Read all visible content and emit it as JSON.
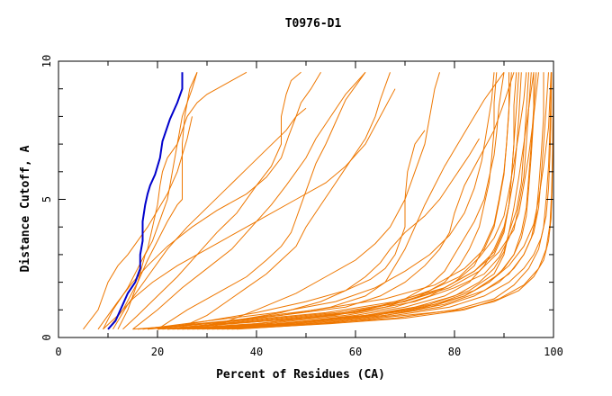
{
  "chart_data": {
    "type": "line",
    "title": "T0976-D1",
    "xlabel": "Percent of Residues (CA)",
    "ylabel": "Distance Cutoff, A",
    "xlim": [
      0,
      100
    ],
    "ylim": [
      0,
      10
    ],
    "x_ticks": [
      0,
      20,
      40,
      60,
      80,
      100
    ],
    "x_tick_labels": [
      "0",
      "20",
      "40",
      "60",
      "80",
      "100"
    ],
    "y_ticks": [
      0,
      5,
      10
    ],
    "y_tick_labels": [
      "0",
      "5",
      "10"
    ],
    "grid": false,
    "colors": {
      "highlight": "#0000cc",
      "others": "#ee7700",
      "axes": "#000000"
    },
    "highlight_series": {
      "x": [
        10,
        11.5,
        12.5,
        14,
        15.5,
        16.5,
        16.5,
        17,
        17,
        17.5,
        18,
        18.5,
        19.5,
        20.5,
        21,
        22.5,
        24,
        25,
        25
      ],
      "y": [
        0.3,
        0.6,
        1.0,
        1.6,
        2.0,
        2.5,
        3.0,
        3.5,
        4.2,
        4.8,
        5.2,
        5.5,
        5.9,
        6.5,
        7.1,
        7.9,
        8.5,
        9.0,
        9.6
      ]
    },
    "series": [
      {
        "x": [
          9,
          11,
          14,
          16,
          18,
          19,
          20,
          20.5,
          21,
          22,
          24,
          25,
          26,
          28,
          30,
          32,
          34,
          36,
          38
        ],
        "y": [
          0.3,
          1.0,
          1.8,
          2.5,
          3.2,
          4.0,
          4.8,
          5.5,
          6.0,
          6.5,
          7.0,
          7.5,
          8.0,
          8.5,
          8.8,
          9.0,
          9.2,
          9.4,
          9.6
        ]
      },
      {
        "x": [
          12,
          14,
          16,
          17.5,
          19,
          20,
          21,
          22,
          22.5,
          23,
          24,
          25,
          26,
          27,
          28
        ],
        "y": [
          0.3,
          1.0,
          2.0,
          3.0,
          3.5,
          4.0,
          4.5,
          5.0,
          5.5,
          6.0,
          7.0,
          8.0,
          8.5,
          9.0,
          9.6
        ]
      },
      {
        "x": [
          10,
          13,
          16,
          18,
          20,
          22,
          24,
          25,
          25,
          25,
          25.5,
          26.5,
          28
        ],
        "y": [
          0.3,
          1.0,
          2.0,
          2.8,
          3.5,
          4.2,
          4.8,
          5.0,
          6.0,
          7.0,
          8.0,
          9.0,
          9.6
        ]
      },
      {
        "x": [
          8,
          10,
          12,
          15,
          18,
          22,
          27,
          32,
          38,
          42,
          45,
          46.5,
          48,
          49,
          51,
          52,
          53
        ],
        "y": [
          0.3,
          0.8,
          1.3,
          2.0,
          2.6,
          3.3,
          4.0,
          4.6,
          5.2,
          5.8,
          6.5,
          7.3,
          8.0,
          8.5,
          9.0,
          9.3,
          9.6
        ]
      },
      {
        "x": [
          13,
          16,
          20,
          24,
          28,
          32,
          36,
          40,
          43,
          45,
          45,
          46,
          47,
          49
        ],
        "y": [
          0.3,
          0.8,
          1.5,
          2.2,
          3.0,
          3.8,
          4.5,
          5.5,
          6.2,
          7.0,
          8.0,
          8.8,
          9.3,
          9.6
        ]
      },
      {
        "x": [
          15,
          20,
          25,
          30,
          35,
          39,
          43,
          46,
          48,
          50,
          52,
          55,
          58,
          62
        ],
        "y": [
          0.3,
          1.0,
          1.8,
          2.5,
          3.2,
          4.0,
          4.8,
          5.5,
          6.0,
          6.5,
          7.2,
          8.0,
          8.8,
          9.6
        ]
      },
      {
        "x": [
          20,
          26,
          32,
          38,
          42,
          45,
          47,
          48,
          49,
          50,
          51,
          52,
          54,
          56,
          58,
          62
        ],
        "y": [
          0.3,
          1.0,
          1.6,
          2.2,
          2.8,
          3.3,
          3.8,
          4.3,
          4.8,
          5.3,
          5.8,
          6.3,
          7.0,
          7.8,
          8.6,
          9.6
        ]
      },
      {
        "x": [
          24,
          30,
          34,
          38,
          42,
          45,
          48,
          50,
          53,
          56,
          59,
          62,
          64,
          65,
          66,
          67
        ],
        "y": [
          0.3,
          0.8,
          1.3,
          1.8,
          2.3,
          2.8,
          3.3,
          4.0,
          4.8,
          5.6,
          6.4,
          7.2,
          8.0,
          8.6,
          9.1,
          9.6
        ]
      },
      {
        "x": [
          30,
          40,
          48,
          54,
          60,
          64,
          67,
          70,
          72,
          74,
          75,
          76,
          77
        ],
        "y": [
          0.3,
          1.0,
          1.6,
          2.2,
          2.8,
          3.4,
          4.0,
          5.0,
          6.0,
          7.0,
          8.0,
          9.0,
          9.6
        ]
      },
      {
        "x": [
          20,
          30,
          40,
          50,
          58,
          63,
          66,
          68,
          69,
          70,
          70,
          70.5,
          72,
          74
        ],
        "y": [
          0.3,
          0.6,
          0.9,
          1.3,
          1.7,
          2.1,
          2.5,
          3.0,
          3.5,
          4.0,
          5.0,
          6.0,
          7.0,
          7.5
        ]
      },
      {
        "x": [
          25,
          35,
          45,
          53,
          58,
          62,
          65,
          67,
          70,
          74,
          77,
          80,
          83,
          85
        ],
        "y": [
          0.3,
          0.6,
          0.9,
          1.3,
          1.7,
          2.2,
          2.7,
          3.2,
          3.8,
          4.4,
          5.0,
          5.8,
          6.6,
          7.2
        ]
      },
      {
        "x": [
          15,
          30,
          45,
          55,
          62,
          66,
          68,
          70,
          72,
          74,
          76,
          78,
          80,
          82,
          84,
          86,
          88,
          90
        ],
        "y": [
          0.3,
          0.5,
          0.8,
          1.1,
          1.5,
          2.0,
          2.6,
          3.2,
          4.0,
          4.8,
          5.5,
          6.2,
          6.8,
          7.4,
          8.0,
          8.6,
          9.1,
          9.6
        ]
      },
      {
        "x": [
          18,
          30,
          45,
          58,
          65,
          70,
          74,
          77,
          79,
          80,
          82,
          85,
          88,
          90,
          92
        ],
        "y": [
          0.3,
          0.5,
          0.8,
          1.1,
          1.5,
          2.0,
          2.6,
          3.2,
          3.8,
          4.5,
          5.5,
          6.5,
          7.5,
          8.5,
          9.6
        ]
      },
      {
        "x": [
          20,
          35,
          50,
          62,
          70,
          75,
          78,
          80,
          82,
          84,
          86,
          87,
          88,
          88.5,
          89,
          90
        ],
        "y": [
          0.3,
          0.5,
          0.7,
          1.0,
          1.4,
          1.9,
          2.4,
          3.0,
          3.6,
          4.2,
          5.0,
          5.8,
          6.6,
          7.4,
          8.4,
          9.6
        ]
      },
      {
        "x": [
          22,
          40,
          55,
          66,
          73,
          78,
          81,
          83,
          85,
          86,
          87,
          87.5,
          88,
          88,
          88.5
        ],
        "y": [
          0.3,
          0.5,
          0.8,
          1.1,
          1.5,
          2.0,
          2.6,
          3.2,
          4.0,
          4.8,
          5.6,
          6.5,
          7.5,
          8.5,
          9.6
        ]
      },
      {
        "x": [
          24,
          42,
          58,
          68,
          75,
          80,
          84,
          86,
          88,
          89,
          90,
          90.5,
          91,
          91
        ],
        "y": [
          0.3,
          0.5,
          0.8,
          1.1,
          1.5,
          2.0,
          2.6,
          3.3,
          4.1,
          5.0,
          6.0,
          7.0,
          8.2,
          9.6
        ]
      },
      {
        "x": [
          26,
          45,
          60,
          70,
          78,
          83,
          86,
          88,
          90,
          91,
          92,
          92.5,
          93,
          93.5
        ],
        "y": [
          0.3,
          0.5,
          0.8,
          1.1,
          1.5,
          2.0,
          2.6,
          3.2,
          4.0,
          4.8,
          5.8,
          6.8,
          8.0,
          9.6
        ]
      },
      {
        "x": [
          28,
          46,
          62,
          72,
          80,
          85,
          88,
          90,
          91,
          92.5,
          93.5,
          94,
          94.5,
          95
        ],
        "y": [
          0.3,
          0.5,
          0.8,
          1.1,
          1.5,
          2.0,
          2.5,
          3.1,
          3.8,
          4.6,
          5.6,
          6.8,
          8.2,
          9.6
        ]
      },
      {
        "x": [
          30,
          48,
          64,
          75,
          82,
          87,
          90,
          92,
          93.5,
          94.5,
          95,
          95.5,
          96,
          96
        ],
        "y": [
          0.3,
          0.5,
          0.8,
          1.1,
          1.5,
          2.0,
          2.5,
          3.0,
          3.6,
          4.4,
          5.4,
          6.6,
          8.0,
          9.6
        ]
      },
      {
        "x": [
          32,
          50,
          66,
          77,
          84,
          89,
          92,
          94,
          95.5,
          96.5,
          97,
          97.5,
          98,
          98
        ],
        "y": [
          0.3,
          0.5,
          0.8,
          1.1,
          1.5,
          2.0,
          2.5,
          3.0,
          3.6,
          4.4,
          5.4,
          6.6,
          8.0,
          9.6
        ]
      },
      {
        "x": [
          34,
          52,
          68,
          79,
          86,
          91,
          94,
          96,
          97.5,
          98.5,
          99,
          99.3,
          99.5,
          99.6
        ],
        "y": [
          0.3,
          0.5,
          0.8,
          1.1,
          1.5,
          2.0,
          2.5,
          3.0,
          3.6,
          4.4,
          5.4,
          6.6,
          8.0,
          9.6
        ]
      },
      {
        "x": [
          36,
          54,
          70,
          81,
          88,
          93,
          96,
          98,
          99,
          99.5,
          99.7,
          99.8,
          99.9,
          100
        ],
        "y": [
          0.3,
          0.5,
          0.8,
          1.0,
          1.3,
          1.7,
          2.2,
          2.8,
          3.5,
          4.3,
          5.3,
          6.5,
          8.0,
          9.6
        ]
      },
      {
        "x": [
          20,
          40,
          58,
          70,
          78,
          84,
          88,
          90,
          91,
          91.5,
          92,
          92,
          92.5
        ],
        "y": [
          0.3,
          0.6,
          0.9,
          1.3,
          1.8,
          2.4,
          3.0,
          3.8,
          4.8,
          5.8,
          7.0,
          8.4,
          9.6
        ]
      },
      {
        "x": [
          22,
          42,
          60,
          72,
          80,
          86,
          89,
          91,
          93,
          94,
          95,
          96,
          97
        ],
        "y": [
          0.3,
          0.6,
          0.9,
          1.3,
          1.8,
          2.3,
          2.9,
          3.6,
          4.5,
          5.5,
          6.6,
          8.0,
          9.6
        ]
      },
      {
        "x": [
          25,
          44,
          62,
          74,
          82,
          87,
          91,
          94,
          96,
          97,
          98,
          99,
          99.5
        ],
        "y": [
          0.3,
          0.5,
          0.8,
          1.1,
          1.5,
          2.0,
          2.6,
          3.3,
          4.1,
          5.0,
          6.2,
          7.6,
          9.6
        ]
      },
      {
        "x": [
          27,
          46,
          63,
          75,
          83,
          88,
          90,
          91,
          92,
          93,
          94,
          95,
          96
        ],
        "y": [
          0.3,
          0.5,
          0.8,
          1.2,
          1.7,
          2.3,
          3.0,
          3.8,
          4.7,
          5.8,
          7.0,
          8.3,
          9.6
        ]
      },
      {
        "x": [
          29,
          48,
          64,
          76,
          84,
          89,
          92,
          93.5,
          94.5,
          95,
          95.5,
          96,
          96.5
        ],
        "y": [
          0.3,
          0.5,
          0.8,
          1.2,
          1.7,
          2.3,
          3.0,
          3.8,
          4.7,
          5.8,
          7.0,
          8.3,
          9.6
        ]
      },
      {
        "x": [
          31,
          50,
          66,
          78,
          86,
          91,
          94,
          96,
          97,
          97.5,
          98,
          98.5,
          99
        ],
        "y": [
          0.3,
          0.5,
          0.8,
          1.2,
          1.7,
          2.3,
          3.0,
          3.8,
          4.7,
          5.8,
          7.0,
          8.3,
          9.6
        ]
      },
      {
        "x": [
          33,
          52,
          68,
          80,
          88,
          92,
          95,
          97,
          98,
          98.5,
          99,
          99.3,
          99.6
        ],
        "y": [
          0.3,
          0.5,
          0.7,
          1.0,
          1.4,
          1.9,
          2.5,
          3.2,
          4.0,
          5.0,
          6.2,
          7.6,
          9.6
        ]
      },
      {
        "x": [
          18,
          36,
          54,
          68,
          78,
          84,
          88,
          90,
          91,
          91.5,
          92,
          92.5,
          93
        ],
        "y": [
          0.3,
          0.6,
          0.9,
          1.3,
          1.8,
          2.4,
          3.1,
          3.9,
          4.8,
          5.8,
          7.0,
          8.3,
          9.6
        ]
      },
      {
        "x": [
          21,
          38,
          56,
          70,
          79,
          85,
          89,
          92,
          93,
          94,
          94.5,
          95,
          95.5
        ],
        "y": [
          0.3,
          0.6,
          0.9,
          1.3,
          1.8,
          2.4,
          3.1,
          3.9,
          4.8,
          5.8,
          7.0,
          8.3,
          9.6
        ]
      },
      {
        "x": [
          16,
          34,
          52,
          66,
          76,
          82,
          86,
          88,
          89,
          90,
          90.5,
          91,
          91.5
        ],
        "y": [
          0.3,
          0.6,
          1.0,
          1.4,
          1.9,
          2.5,
          3.2,
          4.0,
          4.9,
          5.9,
          7.0,
          8.3,
          9.6
        ]
      },
      {
        "x": [
          35,
          55,
          70,
          82,
          89,
          94,
          97,
          98.5,
          99.3,
          99.6,
          99.8,
          99.9,
          100
        ],
        "y": [
          0.3,
          0.5,
          0.7,
          1.0,
          1.4,
          1.9,
          2.5,
          3.2,
          4.1,
          5.2,
          6.5,
          8.0,
          9.6
        ]
      },
      {
        "x": [
          11,
          14,
          18,
          22,
          26,
          30,
          34,
          38,
          42,
          46,
          48,
          50
        ],
        "y": [
          0.3,
          1.2,
          2.2,
          3.2,
          4.0,
          4.7,
          5.4,
          6.1,
          6.8,
          7.5,
          8.0,
          8.3
        ]
      },
      {
        "x": [
          5,
          8,
          10,
          12,
          14,
          16,
          18,
          20,
          22,
          24,
          26,
          27
        ],
        "y": [
          0.3,
          1.0,
          2.0,
          2.6,
          3.0,
          3.5,
          4.0,
          4.6,
          5.2,
          6.0,
          7.2,
          8.0
        ]
      },
      {
        "x": [
          9,
          12,
          15,
          19,
          24,
          30,
          36,
          42,
          48,
          54,
          58,
          62,
          65,
          68
        ],
        "y": [
          0.3,
          0.8,
          1.4,
          2.0,
          2.6,
          3.2,
          3.8,
          4.4,
          5.0,
          5.6,
          6.2,
          7.0,
          8.0,
          9.0
        ]
      },
      {
        "x": [
          17,
          30,
          44,
          56,
          64,
          70,
          75,
          79,
          82,
          84,
          85.5,
          86.5,
          87.5,
          88
        ],
        "y": [
          0.3,
          0.6,
          0.9,
          1.3,
          1.8,
          2.4,
          3.0,
          3.7,
          4.5,
          5.4,
          6.4,
          7.5,
          8.6,
          9.6
        ]
      },
      {
        "x": [
          23,
          40,
          56,
          67,
          75,
          81,
          85,
          88,
          90,
          91,
          92,
          93,
          94,
          94.5
        ],
        "y": [
          0.3,
          0.5,
          0.8,
          1.2,
          1.7,
          2.2,
          2.9,
          3.6,
          4.4,
          5.3,
          6.3,
          7.4,
          8.6,
          9.6
        ]
      }
    ]
  }
}
